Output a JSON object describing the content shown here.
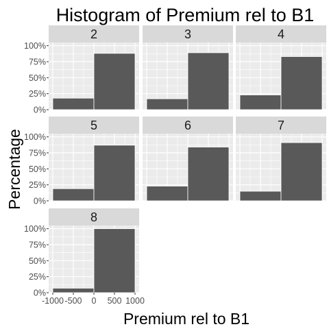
{
  "chart_data": {
    "type": "bar",
    "title": "Histogram of Premium rel to B1",
    "xlabel": "Premium rel to B1",
    "ylabel": "Percentage",
    "xlim": [
      -1000,
      1000
    ],
    "ylim": [
      0,
      1
    ],
    "x_ticks": [
      {
        "value": -1000,
        "label": "-1000"
      },
      {
        "value": -500,
        "label": "-500"
      },
      {
        "value": 0,
        "label": "0"
      },
      {
        "value": 500,
        "label": "500"
      },
      {
        "value": 1000,
        "label": "1000"
      }
    ],
    "y_ticks": [
      {
        "value": 0,
        "label": "0%"
      },
      {
        "value": 0.25,
        "label": "25%"
      },
      {
        "value": 0.5,
        "label": "50%"
      },
      {
        "value": 0.75,
        "label": "75%"
      },
      {
        "value": 1,
        "label": "100%"
      }
    ],
    "bins": [
      [
        -1000,
        0
      ],
      [
        0,
        1000
      ]
    ],
    "panels": [
      {
        "label": "2",
        "values": [
          0.18,
          0.88
        ]
      },
      {
        "label": "3",
        "values": [
          0.17,
          0.89
        ]
      },
      {
        "label": "4",
        "values": [
          0.23,
          0.83
        ]
      },
      {
        "label": "5",
        "values": [
          0.19,
          0.87
        ]
      },
      {
        "label": "6",
        "values": [
          0.23,
          0.84
        ]
      },
      {
        "label": "7",
        "values": [
          0.15,
          0.91
        ]
      },
      {
        "label": "8",
        "values": [
          0.07,
          1.0
        ]
      }
    ],
    "grid": true,
    "colors": {
      "panel_background": "#ebebeb",
      "strip_background": "#d9d9d9",
      "bar_fill": "#595959",
      "bar_outline": "#ffffff"
    }
  }
}
